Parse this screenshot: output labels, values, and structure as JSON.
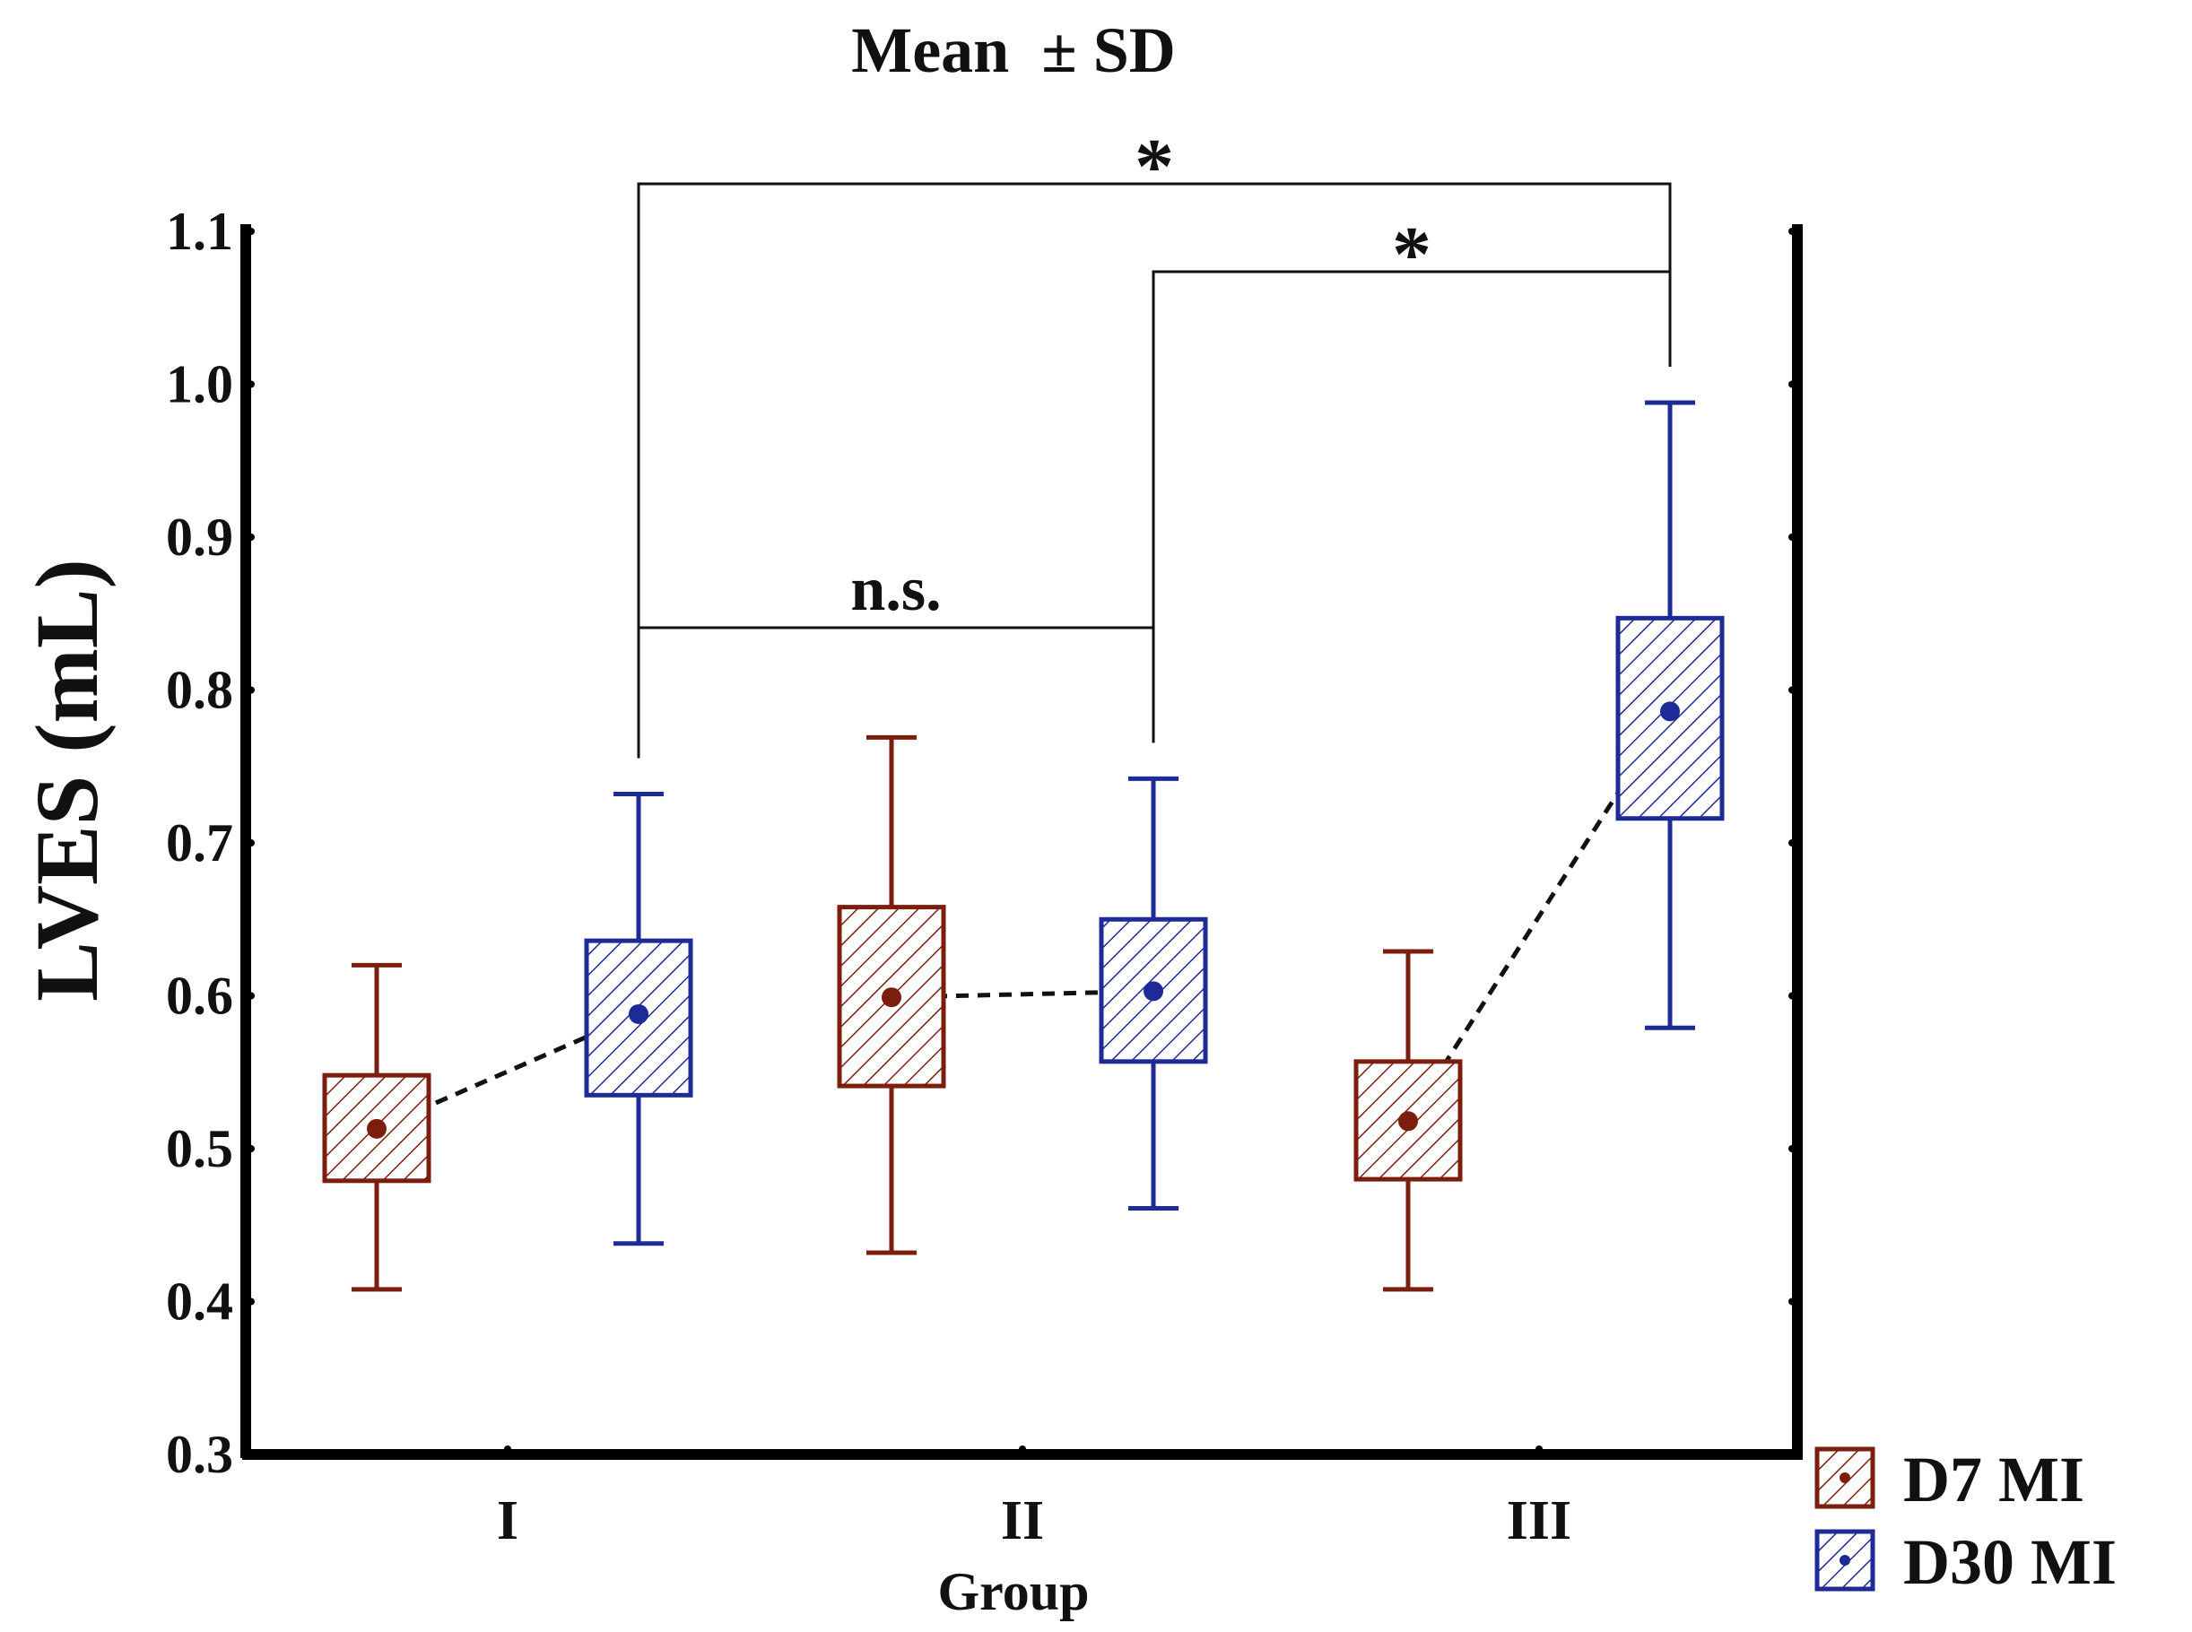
{
  "chart_data": {
    "type": "box",
    "title": "Mean  ± SD",
    "xlabel": "Group",
    "ylabel": "LVES (mL)",
    "ylim": [
      0.3,
      1.1
    ],
    "yticks": [
      "0.3",
      "0.4",
      "0.5",
      "0.6",
      "0.7",
      "0.8",
      "0.9",
      "1.0",
      "1.1"
    ],
    "categories": [
      "I",
      "II",
      "III"
    ],
    "series": [
      {
        "name": "D7 MI",
        "color": "#7B1E0E",
        "boxes": [
          {
            "group": "I",
            "mean": 0.513,
            "box_low": 0.479,
            "box_high": 0.548,
            "whisker_low": 0.408,
            "whisker_high": 0.62
          },
          {
            "group": "II",
            "mean": 0.599,
            "box_low": 0.541,
            "box_high": 0.658,
            "whisker_low": 0.432,
            "whisker_high": 0.769
          },
          {
            "group": "III",
            "mean": 0.518,
            "box_low": 0.48,
            "box_high": 0.557,
            "whisker_low": 0.408,
            "whisker_high": 0.629
          }
        ]
      },
      {
        "name": "D30 MI",
        "color": "#1E2A96",
        "boxes": [
          {
            "group": "I",
            "mean": 0.588,
            "box_low": 0.535,
            "box_high": 0.636,
            "whisker_low": 0.438,
            "whisker_high": 0.732
          },
          {
            "group": "II",
            "mean": 0.603,
            "box_low": 0.557,
            "box_high": 0.65,
            "whisker_low": 0.461,
            "whisker_high": 0.742
          },
          {
            "group": "III",
            "mean": 0.786,
            "box_low": 0.716,
            "box_high": 0.847,
            "whisker_low": 0.579,
            "whisker_high": 0.988
          }
        ]
      }
    ],
    "significance": [
      {
        "from": "I D30 MI",
        "to": "II D30 MI",
        "label": "n.s."
      },
      {
        "from": "I D30 MI",
        "to": "III D30 MI",
        "label": "*"
      },
      {
        "from": "II D30 MI",
        "to": "III D30 MI",
        "label": "*"
      }
    ],
    "legend_position": "bottom-right"
  }
}
